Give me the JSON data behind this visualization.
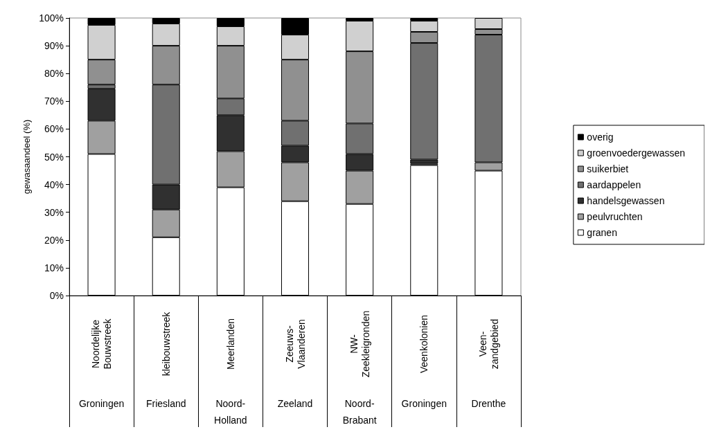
{
  "chart_data": {
    "type": "bar",
    "stacked": true,
    "ylabel": "gewasaandeel (%)",
    "categories": [
      "Noordelijke\nBouwstreek",
      "kleibouwstreek",
      "Meerlanden",
      "Zeeuws-\nVlaanderen",
      "NW-\nZeekleigronden",
      "Veenkolonien",
      "Veen-\nzandgebied"
    ],
    "annotations": [
      "Groningen",
      "Friesland",
      "Noord-\nHolland",
      "Zeeland",
      "Noord-\nBrabant",
      "Groningen",
      "Drenthe"
    ],
    "series": [
      {
        "name": "granen",
        "color": "#ffffff",
        "values": [
          51,
          21,
          39,
          34,
          33,
          47,
          45
        ]
      },
      {
        "name": "peulvruchten",
        "color": "#a0a0a0",
        "values": [
          12,
          10,
          13,
          14,
          12,
          0.5,
          3
        ]
      },
      {
        "name": "handelsgewassen",
        "color": "#303030",
        "values": [
          11.5,
          9,
          13,
          6,
          6,
          1.5,
          0
        ]
      },
      {
        "name": "aardappelen",
        "color": "#707070",
        "values": [
          1.5,
          36,
          6,
          9,
          11,
          42,
          46
        ]
      },
      {
        "name": "suikerbiet",
        "color": "#909090",
        "values": [
          9,
          14,
          19,
          22,
          26,
          4,
          2
        ]
      },
      {
        "name": "groenvoedergewassen",
        "color": "#d0d0d0",
        "values": [
          12.5,
          8,
          7,
          9,
          11,
          4,
          4
        ]
      },
      {
        "name": "overig",
        "color": "#000000",
        "values": [
          2.5,
          2,
          3,
          6,
          1,
          1,
          0
        ]
      }
    ],
    "ylim": [
      0,
      100
    ],
    "yticks": [
      {
        "value": 0,
        "label": "0%"
      },
      {
        "value": 10,
        "label": "10%"
      },
      {
        "value": 20,
        "label": "20%"
      },
      {
        "value": 30,
        "label": "30%"
      },
      {
        "value": 40,
        "label": "40%"
      },
      {
        "value": 50,
        "label": "50%"
      },
      {
        "value": 60,
        "label": "60%"
      },
      {
        "value": 70,
        "label": "70%"
      },
      {
        "value": 80,
        "label": "80%"
      },
      {
        "value": 90,
        "label": "90%"
      },
      {
        "value": 100,
        "label": "100%"
      }
    ],
    "grid": false,
    "legend": "right"
  }
}
